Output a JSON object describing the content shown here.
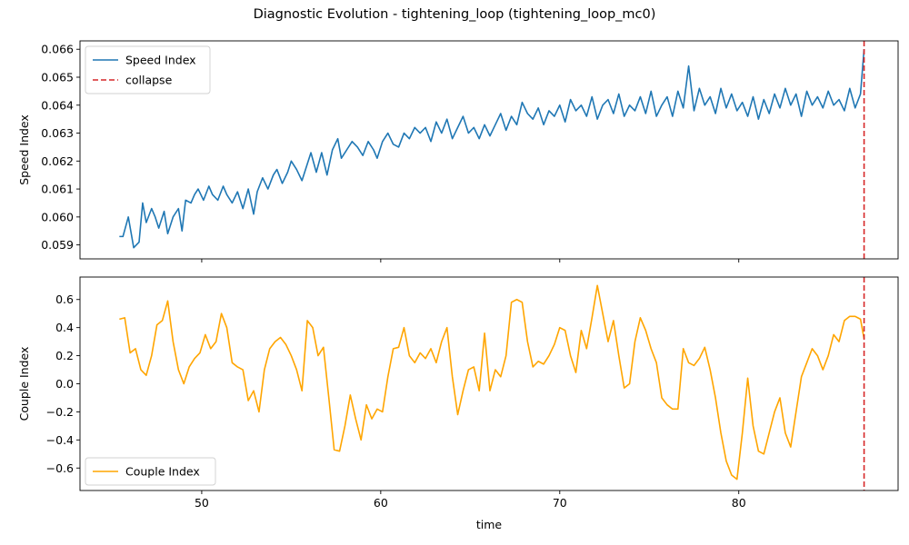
{
  "title": "Diagnostic Evolution - tightening_loop (tightening_loop_mc0)",
  "chart_data": [
    {
      "type": "line",
      "ylabel": "Speed Index",
      "xlabel": "",
      "xlim": [
        43.2,
        88.9
      ],
      "ylim": [
        0.0585,
        0.0663
      ],
      "xticks": [
        50,
        60,
        70,
        80
      ],
      "yticks": [
        0.059,
        0.06,
        0.061,
        0.062,
        0.063,
        0.064,
        0.065,
        0.066
      ],
      "ytick_labels": [
        "0.059",
        "0.060",
        "0.061",
        "0.062",
        "0.063",
        "0.064",
        "0.065",
        "0.066"
      ],
      "legend_position": "upper-left",
      "series": [
        {
          "name": "Speed Index",
          "color": "#1f77b4",
          "style": "solid",
          "x": [
            45.4,
            45.6,
            45.9,
            46.2,
            46.5,
            46.7,
            46.9,
            47.2,
            47.4,
            47.6,
            47.9,
            48.1,
            48.4,
            48.7,
            48.9,
            49.1,
            49.4,
            49.6,
            49.8,
            50.1,
            50.4,
            50.6,
            50.9,
            51.2,
            51.4,
            51.7,
            52.0,
            52.3,
            52.6,
            52.9,
            53.1,
            53.4,
            53.7,
            54.0,
            54.2,
            54.5,
            54.8,
            55.0,
            55.3,
            55.6,
            55.9,
            56.1,
            56.4,
            56.7,
            57.0,
            57.3,
            57.6,
            57.8,
            58.1,
            58.4,
            58.7,
            59.0,
            59.3,
            59.6,
            59.8,
            60.1,
            60.4,
            60.7,
            61.0,
            61.3,
            61.6,
            61.9,
            62.2,
            62.5,
            62.8,
            63.1,
            63.4,
            63.7,
            64.0,
            64.3,
            64.6,
            64.9,
            65.2,
            65.5,
            65.8,
            66.1,
            66.4,
            66.7,
            67.0,
            67.3,
            67.6,
            67.9,
            68.2,
            68.5,
            68.8,
            69.1,
            69.4,
            69.7,
            70.0,
            70.3,
            70.6,
            70.9,
            71.2,
            71.5,
            71.8,
            72.1,
            72.4,
            72.7,
            73.0,
            73.3,
            73.6,
            73.9,
            74.2,
            74.5,
            74.8,
            75.1,
            75.4,
            75.7,
            76.0,
            76.3,
            76.6,
            76.9,
            77.2,
            77.5,
            77.8,
            78.1,
            78.4,
            78.7,
            79.0,
            79.3,
            79.6,
            79.9,
            80.2,
            80.5,
            80.8,
            81.1,
            81.4,
            81.7,
            82.0,
            82.3,
            82.6,
            82.9,
            83.2,
            83.5,
            83.8,
            84.1,
            84.4,
            84.7,
            85.0,
            85.3,
            85.6,
            85.9,
            86.2,
            86.5,
            86.8,
            87.0
          ],
          "values": [
            0.0593,
            0.0593,
            0.06,
            0.0589,
            0.0591,
            0.0605,
            0.0598,
            0.0603,
            0.06,
            0.0596,
            0.0602,
            0.0594,
            0.06,
            0.0603,
            0.0595,
            0.0606,
            0.0605,
            0.0608,
            0.061,
            0.0606,
            0.0611,
            0.0608,
            0.0606,
            0.0611,
            0.0608,
            0.0605,
            0.0609,
            0.0603,
            0.061,
            0.0601,
            0.0609,
            0.0614,
            0.061,
            0.0615,
            0.0617,
            0.0612,
            0.0616,
            0.062,
            0.0617,
            0.0613,
            0.0619,
            0.0623,
            0.0616,
            0.0623,
            0.0615,
            0.0624,
            0.0628,
            0.0621,
            0.0624,
            0.0627,
            0.0625,
            0.0622,
            0.0627,
            0.0624,
            0.0621,
            0.0627,
            0.063,
            0.0626,
            0.0625,
            0.063,
            0.0628,
            0.0632,
            0.063,
            0.0632,
            0.0627,
            0.0634,
            0.063,
            0.0635,
            0.0628,
            0.0632,
            0.0636,
            0.063,
            0.0632,
            0.0628,
            0.0633,
            0.0629,
            0.0633,
            0.0637,
            0.0631,
            0.0636,
            0.0633,
            0.0641,
            0.0637,
            0.0635,
            0.0639,
            0.0633,
            0.0638,
            0.0636,
            0.064,
            0.0634,
            0.0642,
            0.0638,
            0.064,
            0.0636,
            0.0643,
            0.0635,
            0.064,
            0.0642,
            0.0637,
            0.0644,
            0.0636,
            0.064,
            0.0638,
            0.0643,
            0.0637,
            0.0645,
            0.0636,
            0.064,
            0.0643,
            0.0636,
            0.0645,
            0.0639,
            0.0654,
            0.0638,
            0.0646,
            0.064,
            0.0643,
            0.0637,
            0.0646,
            0.0639,
            0.0644,
            0.0638,
            0.0641,
            0.0636,
            0.0643,
            0.0635,
            0.0642,
            0.0637,
            0.0644,
            0.0639,
            0.0646,
            0.064,
            0.0644,
            0.0636,
            0.0645,
            0.064,
            0.0643,
            0.0639,
            0.0645,
            0.064,
            0.0642,
            0.0638,
            0.0646,
            0.0639,
            0.0644,
            0.066
          ]
        }
      ],
      "vlines": [
        {
          "name": "collapse",
          "x": 87.0,
          "color": "#d62728",
          "style": "dashed"
        }
      ]
    },
    {
      "type": "line",
      "ylabel": "Couple Index",
      "xlabel": "time",
      "xlim": [
        43.2,
        88.9
      ],
      "ylim": [
        -0.76,
        0.76
      ],
      "xticks": [
        50,
        60,
        70,
        80
      ],
      "yticks": [
        -0.6,
        -0.4,
        -0.2,
        0.0,
        0.2,
        0.4,
        0.6
      ],
      "ytick_labels": [
        "−0.6",
        "−0.4",
        "−0.2",
        "0.0",
        "0.2",
        "0.4",
        "0.6"
      ],
      "legend_position": "lower-left",
      "series": [
        {
          "name": "Couple Index",
          "color": "#ffa500",
          "style": "solid",
          "x": [
            45.4,
            45.7,
            46.0,
            46.3,
            46.6,
            46.9,
            47.2,
            47.5,
            47.8,
            48.1,
            48.4,
            48.7,
            49.0,
            49.3,
            49.6,
            49.9,
            50.2,
            50.5,
            50.8,
            51.1,
            51.4,
            51.7,
            52.0,
            52.3,
            52.6,
            52.9,
            53.2,
            53.5,
            53.8,
            54.1,
            54.4,
            54.7,
            55.0,
            55.3,
            55.6,
            55.9,
            56.2,
            56.5,
            56.8,
            57.1,
            57.4,
            57.7,
            58.0,
            58.3,
            58.6,
            58.9,
            59.2,
            59.5,
            59.8,
            60.1,
            60.4,
            60.7,
            61.0,
            61.3,
            61.6,
            61.9,
            62.2,
            62.5,
            62.8,
            63.1,
            63.4,
            63.7,
            64.0,
            64.3,
            64.6,
            64.9,
            65.2,
            65.5,
            65.8,
            66.1,
            66.4,
            66.7,
            67.0,
            67.3,
            67.6,
            67.9,
            68.2,
            68.5,
            68.8,
            69.1,
            69.4,
            69.7,
            70.0,
            70.3,
            70.6,
            70.9,
            71.2,
            71.5,
            71.8,
            72.1,
            72.4,
            72.7,
            73.0,
            73.3,
            73.6,
            73.9,
            74.2,
            74.5,
            74.8,
            75.1,
            75.4,
            75.7,
            76.0,
            76.3,
            76.6,
            76.9,
            77.2,
            77.5,
            77.8,
            78.1,
            78.4,
            78.7,
            79.0,
            79.3,
            79.6,
            79.9,
            80.2,
            80.5,
            80.8,
            81.1,
            81.4,
            81.7,
            82.0,
            82.3,
            82.6,
            82.9,
            83.2,
            83.5,
            83.8,
            84.1,
            84.4,
            84.7,
            85.0,
            85.3,
            85.6,
            85.9,
            86.2,
            86.5,
            86.8,
            87.0
          ],
          "values": [
            0.46,
            0.47,
            0.22,
            0.25,
            0.1,
            0.06,
            0.2,
            0.42,
            0.45,
            0.59,
            0.3,
            0.1,
            0.0,
            0.12,
            0.18,
            0.22,
            0.35,
            0.25,
            0.3,
            0.5,
            0.4,
            0.15,
            0.12,
            0.1,
            -0.12,
            -0.05,
            -0.2,
            0.1,
            0.25,
            0.3,
            0.33,
            0.28,
            0.2,
            0.1,
            -0.05,
            0.45,
            0.4,
            0.2,
            0.26,
            -0.1,
            -0.47,
            -0.48,
            -0.3,
            -0.08,
            -0.25,
            -0.4,
            -0.15,
            -0.25,
            -0.18,
            -0.2,
            0.05,
            0.25,
            0.26,
            0.4,
            0.2,
            0.15,
            0.22,
            0.18,
            0.25,
            0.15,
            0.3,
            0.4,
            0.05,
            -0.22,
            -0.05,
            0.1,
            0.12,
            -0.05,
            0.36,
            -0.05,
            0.1,
            0.05,
            0.2,
            0.58,
            0.6,
            0.58,
            0.3,
            0.12,
            0.16,
            0.14,
            0.2,
            0.28,
            0.4,
            0.38,
            0.2,
            0.08,
            0.38,
            0.25,
            0.47,
            0.7,
            0.5,
            0.3,
            0.45,
            0.2,
            -0.03,
            0.0,
            0.3,
            0.47,
            0.38,
            0.25,
            0.15,
            -0.1,
            -0.15,
            -0.18,
            -0.18,
            0.25,
            0.15,
            0.13,
            0.18,
            0.26,
            0.1,
            -0.1,
            -0.35,
            -0.55,
            -0.65,
            -0.68,
            -0.35,
            0.04,
            -0.3,
            -0.48,
            -0.5,
            -0.35,
            -0.2,
            -0.1,
            -0.35,
            -0.45,
            -0.2,
            0.05,
            0.15,
            0.25,
            0.2,
            0.1,
            0.2,
            0.35,
            0.3,
            0.45,
            0.48,
            0.48,
            0.46,
            0.32
          ]
        }
      ],
      "vlines": [
        {
          "name": "",
          "x": 87.0,
          "color": "#d62728",
          "style": "dashed"
        }
      ]
    }
  ]
}
